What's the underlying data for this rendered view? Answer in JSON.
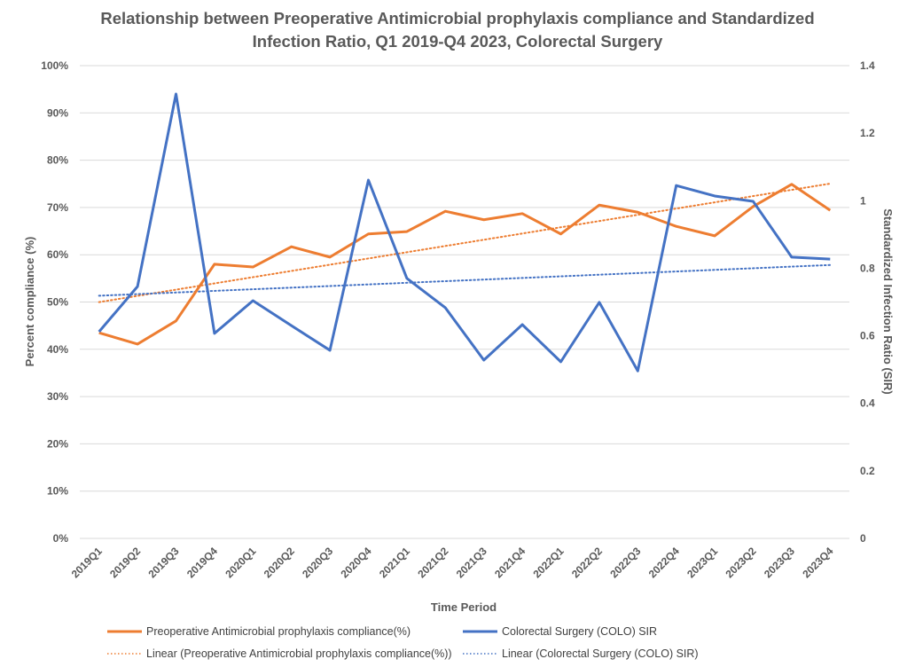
{
  "chart_data": {
    "type": "line",
    "title_line1": "Relationship between Preoperative Antimicrobial prophylaxis compliance and Standardized",
    "title_line2": "Infection Ratio, Q1 2019-Q4 2023, Colorectal Surgery",
    "xlabel": "Time Period",
    "ylabel_left": "Percent compliance (%)",
    "ylabel_right": "Standardized Infection Ratio (SIR)",
    "categories": [
      "2019Q1",
      "2019Q2",
      "2019Q3",
      "2019Q4",
      "2020Q1",
      "2020Q2",
      "2020Q3",
      "2020Q4",
      "2021Q1",
      "2021Q2",
      "2021Q3",
      "2021Q4",
      "2022Q1",
      "2022Q2",
      "2022Q3",
      "2022Q4",
      "2023Q1",
      "2023Q2",
      "2023Q3",
      "2023Q4"
    ],
    "ylim_left": [
      0,
      100
    ],
    "ylim_right": [
      0,
      1.4
    ],
    "left_ticks": [
      "0%",
      "10%",
      "20%",
      "30%",
      "40%",
      "50%",
      "60%",
      "70%",
      "80%",
      "90%",
      "100%"
    ],
    "left_tick_values": [
      0,
      10,
      20,
      30,
      40,
      50,
      60,
      70,
      80,
      90,
      100
    ],
    "right_ticks": [
      "0",
      "0.2",
      "0.4",
      "0.6",
      "0.8",
      "1",
      "1.2",
      "1.4"
    ],
    "right_tick_values": [
      0,
      0.2,
      0.4,
      0.6,
      0.8,
      1.0,
      1.2,
      1.4
    ],
    "grid": true,
    "legend_position": "bottom",
    "series": [
      {
        "name": "Preoperative Antimicrobial prophylaxis compliance(%)",
        "axis": "left",
        "color": "#ED7D31",
        "values": [
          43.5,
          41.1,
          46.0,
          58.0,
          57.4,
          61.7,
          59.5,
          64.4,
          64.9,
          69.2,
          67.4,
          68.7,
          64.4,
          70.5,
          69.0,
          66.0,
          64.0,
          70.2,
          74.9,
          69.4
        ]
      },
      {
        "name": "Colorectal Surgery (COLO) SIR",
        "axis": "right",
        "color": "#4472C4",
        "values": [
          0.612,
          0.746,
          1.316,
          0.607,
          0.704,
          0.63,
          0.557,
          1.061,
          0.77,
          0.683,
          0.528,
          0.633,
          0.523,
          0.699,
          0.496,
          1.045,
          1.014,
          0.998,
          0.833,
          0.827
        ]
      }
    ],
    "trendlines": [
      {
        "name": "Linear (Preoperative Antimicrobial prophylaxis compliance(%))",
        "of_series": 0,
        "type": "linear",
        "style": "dotted",
        "color": "#ED7D31"
      },
      {
        "name": "Linear (Colorectal Surgery (COLO) SIR)",
        "of_series": 1,
        "type": "linear",
        "style": "dotted",
        "color": "#4472C4"
      }
    ]
  }
}
